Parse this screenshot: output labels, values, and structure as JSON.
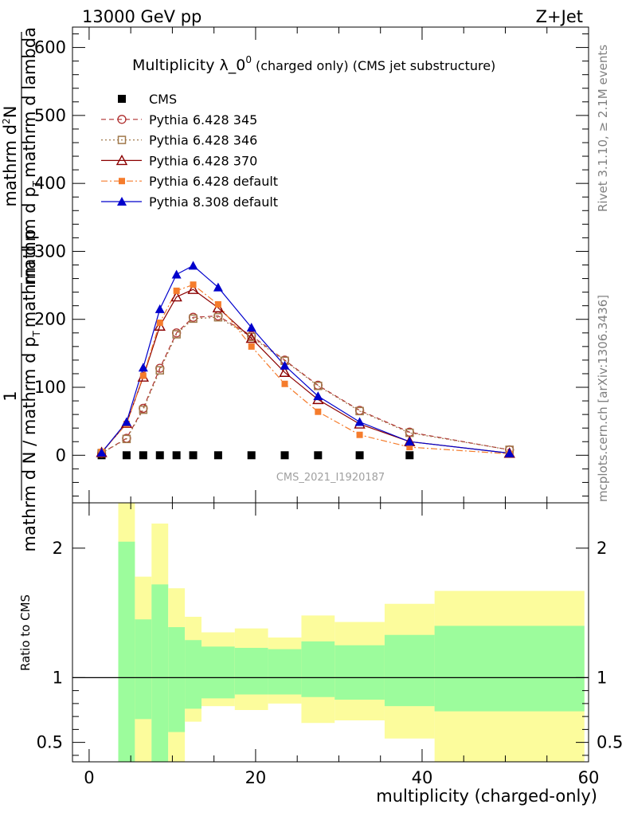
{
  "header": {
    "energy_label": "13000 GeV pp",
    "process_label": "Z+Jet",
    "rivet_label": "Rivet 3.1.10, ≥ 2.1M events",
    "mcplots_label": "mcplots.cern.ch [arXiv:1306.3436]",
    "analysis_label": "CMS_2021_I1920187"
  },
  "chart_data": [
    {
      "type": "line",
      "title": "Multiplicity λ_0",
      "title_sup": "0",
      "title_suffix": "(charged only) (CMS jet substructure)",
      "ylabel_top": "1",
      "ylabel_lines": [
        "mathrm dN",
        "mathrm d p_T mathrm d p_T mathrm d lambda",
        "mathrm d N / mathrm d p_T mathrm d p_T mathrm d lambda"
      ],
      "ylabel_denominator": "mathrm d N / mathrm d p",
      "ylabel_parts": {
        "numerator_prefix": "1",
        "denominator": "mathrm d N / mathrm d p",
        "subscript": "T",
        "denominator_suffix": "mathrm d p",
        "top_numerator": "mathrm d",
        "top_numerator_sup": "2",
        "top_numerator_suffix": "N",
        "top_denominator": "mathrm d p",
        "top_denominator_sub": "T",
        "top_denominator_suffix": "mathrm d lambda"
      },
      "ylabel_left": "mathrm d N / mathrm d p",
      "xlim": [
        -2,
        60
      ],
      "ylim": [
        -70,
        630
      ],
      "yticks": [
        0,
        100,
        200,
        300,
        400,
        500,
        600
      ],
      "grid": false,
      "legend_position": "top-left",
      "series": [
        {
          "name": "CMS",
          "color": "#000000",
          "marker": "square-filled",
          "line": "none",
          "x": [
            1.5,
            4.5,
            6.5,
            8.5,
            10.5,
            12.5,
            15.5,
            19.5,
            23.5,
            27.5,
            32.5,
            38.5
          ],
          "y": [
            0,
            0,
            0,
            0,
            0,
            0,
            0,
            0,
            0,
            0,
            0,
            0
          ]
        },
        {
          "name": "Pythia 6.428 345",
          "color": "#b03030",
          "marker": "circle-open",
          "line": "dashed",
          "x": [
            1.5,
            4.5,
            6.5,
            8.5,
            10.5,
            12.5,
            15.5,
            19.5,
            23.5,
            27.5,
            32.5,
            38.5,
            50.5
          ],
          "y": [
            3,
            25,
            69,
            128,
            180,
            203,
            205,
            176,
            140,
            103,
            66,
            34,
            8
          ]
        },
        {
          "name": "Pythia 6.428 346",
          "color": "#a0784a",
          "marker": "square-open",
          "line": "dotted",
          "x": [
            1.5,
            4.5,
            6.5,
            8.5,
            10.5,
            12.5,
            15.5,
            19.5,
            23.5,
            27.5,
            32.5,
            38.5,
            50.5
          ],
          "y": [
            3,
            24,
            67,
            125,
            178,
            201,
            203,
            174,
            139,
            102,
            65,
            33,
            8
          ]
        },
        {
          "name": "Pythia 6.428 370",
          "color": "#8b0000",
          "marker": "triangle-open",
          "line": "solid",
          "x": [
            1.5,
            4.5,
            6.5,
            8.5,
            10.5,
            12.5,
            15.5,
            19.5,
            23.5,
            27.5,
            32.5,
            38.5,
            50.5
          ],
          "y": [
            4,
            47,
            115,
            190,
            233,
            244,
            217,
            172,
            122,
            82,
            46,
            20,
            3
          ]
        },
        {
          "name": "Pythia 6.428 default",
          "color": "#f57c2c",
          "marker": "square-filled-small",
          "line": "dashdot",
          "x": [
            1.5,
            4.5,
            6.5,
            8.5,
            10.5,
            12.5,
            15.5,
            19.5,
            23.5,
            27.5,
            32.5,
            38.5,
            50.5
          ],
          "y": [
            5,
            46,
            117,
            195,
            242,
            251,
            222,
            160,
            105,
            64,
            30,
            12,
            2
          ]
        },
        {
          "name": "Pythia 8.308 default",
          "color": "#0000cc",
          "marker": "triangle-filled",
          "line": "solid",
          "x": [
            1.5,
            4.5,
            6.5,
            8.5,
            10.5,
            12.5,
            15.5,
            19.5,
            23.5,
            27.5,
            32.5,
            38.5,
            50.5
          ],
          "y": [
            4,
            49,
            129,
            215,
            266,
            279,
            247,
            188,
            132,
            87,
            49,
            20,
            3
          ]
        }
      ]
    },
    {
      "type": "area",
      "ylabel": "Ratio to CMS",
      "xlabel": "multiplicity (charged-only)",
      "xlim": [
        -2,
        60
      ],
      "ylim": [
        0.35,
        2.35
      ],
      "xticks": [
        0,
        20,
        40,
        60
      ],
      "yticks": [
        0.5,
        1,
        2
      ],
      "reference_line": 1,
      "bins": [
        {
          "x": [
            3.5,
            5.5
          ],
          "inner": [
            0.35,
            2.05
          ],
          "outer": [
            0.35,
            2.35
          ]
        },
        {
          "x": [
            5.5,
            7.5
          ],
          "inner": [
            0.68,
            1.45
          ],
          "outer": [
            0.35,
            1.78
          ]
        },
        {
          "x": [
            7.5,
            9.5
          ],
          "inner": [
            0.35,
            1.72
          ],
          "outer": [
            0.35,
            2.19
          ]
        },
        {
          "x": [
            9.5,
            11.5
          ],
          "inner": [
            0.58,
            1.39
          ],
          "outer": [
            0.35,
            1.69
          ]
        },
        {
          "x": [
            11.5,
            13.5
          ],
          "inner": [
            0.76,
            1.29
          ],
          "outer": [
            0.66,
            1.47
          ]
        },
        {
          "x": [
            13.5,
            17.5
          ],
          "inner": [
            0.84,
            1.24
          ],
          "outer": [
            0.78,
            1.35
          ]
        },
        {
          "x": [
            17.5,
            21.5
          ],
          "inner": [
            0.87,
            1.23
          ],
          "outer": [
            0.75,
            1.38
          ]
        },
        {
          "x": [
            21.5,
            25.5
          ],
          "inner": [
            0.87,
            1.22
          ],
          "outer": [
            0.8,
            1.31
          ]
        },
        {
          "x": [
            25.5,
            29.5
          ],
          "inner": [
            0.85,
            1.28
          ],
          "outer": [
            0.65,
            1.48
          ]
        },
        {
          "x": [
            29.5,
            35.5
          ],
          "inner": [
            0.83,
            1.25
          ],
          "outer": [
            0.67,
            1.43
          ]
        },
        {
          "x": [
            35.5,
            41.5
          ],
          "inner": [
            0.78,
            1.33
          ],
          "outer": [
            0.53,
            1.57
          ]
        },
        {
          "x": [
            41.5,
            59.5
          ],
          "inner": [
            0.74,
            1.4
          ],
          "outer": [
            0.35,
            1.67
          ]
        }
      ],
      "colors": {
        "inner": "#9cfc9c",
        "outer": "#fcfc9c"
      }
    }
  ]
}
